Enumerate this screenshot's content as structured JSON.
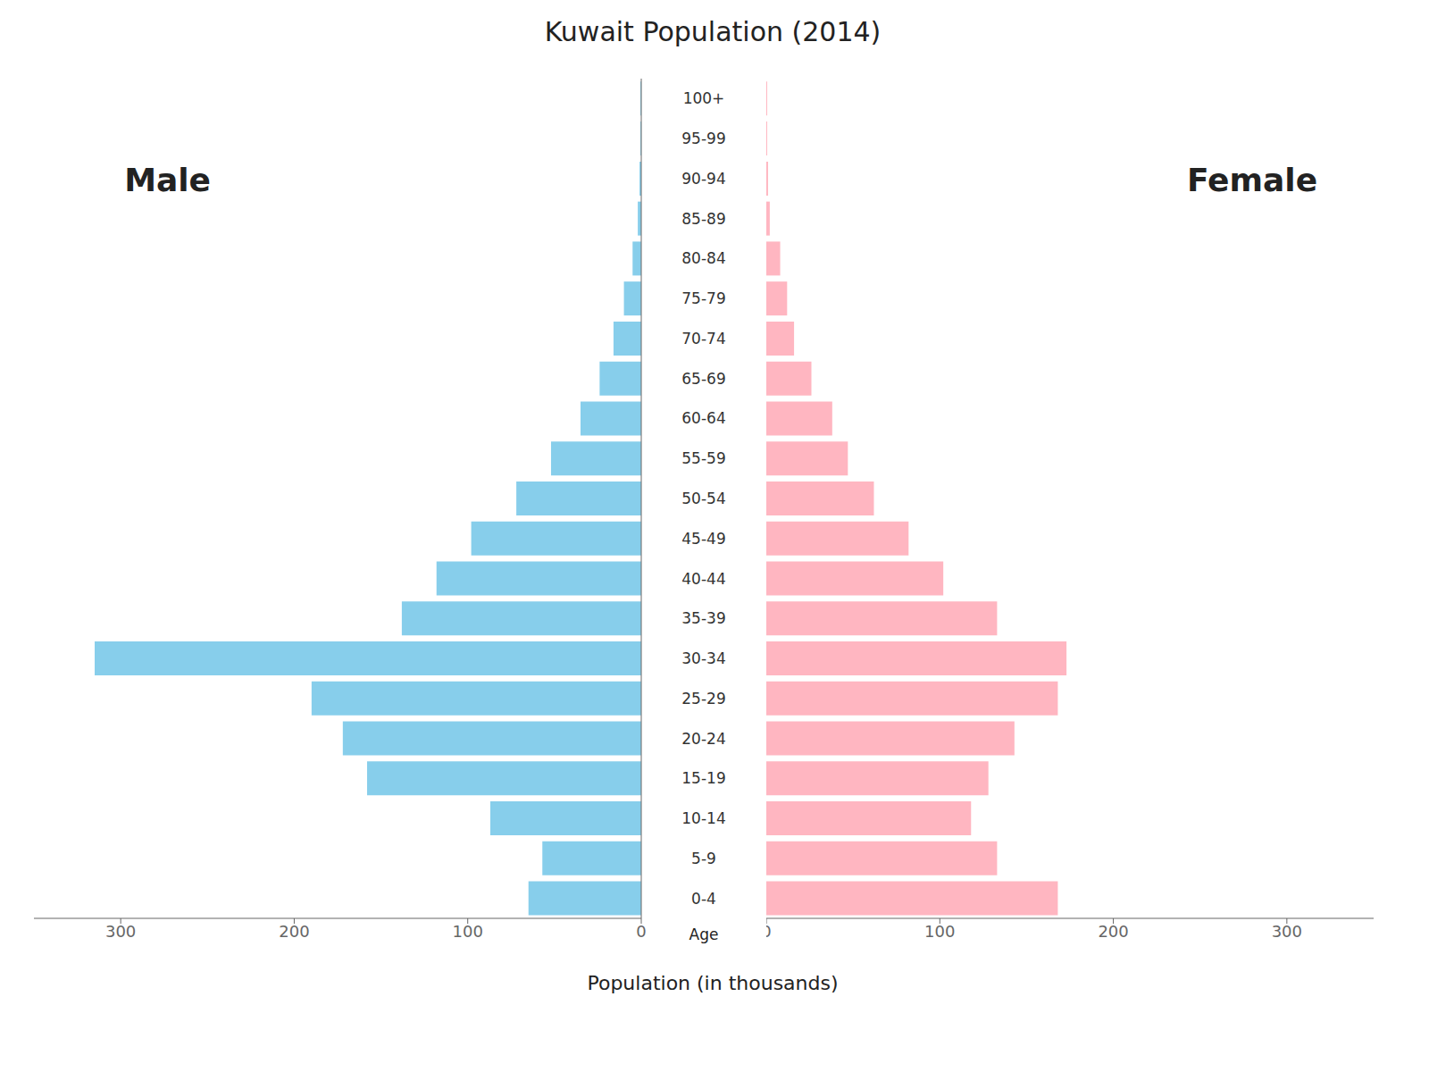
{
  "chart_data": {
    "type": "pyramid",
    "title": "Kuwait Population (2014)",
    "orientation": "horizontal",
    "xlabel": "Population (in thousands)",
    "ylabel": "Age",
    "categories": [
      "0-4",
      "5-9",
      "10-14",
      "15-19",
      "20-24",
      "25-29",
      "30-34",
      "35-39",
      "40-44",
      "45-49",
      "50-54",
      "55-59",
      "60-64",
      "65-69",
      "70-74",
      "75-79",
      "80-84",
      "85-89",
      "90-94",
      "95-99",
      "100+"
    ],
    "series": [
      {
        "name": "Male",
        "color": "#87CEEB",
        "values": [
          65,
          57,
          87,
          158,
          172,
          190,
          315,
          138,
          118,
          98,
          72,
          52,
          35,
          24,
          16,
          10,
          5,
          2,
          1.0,
          0.5,
          0.5
        ]
      },
      {
        "name": "Female",
        "color": "#FFB6C1",
        "values": [
          168,
          133,
          118,
          128,
          143,
          168,
          173,
          133,
          102,
          82,
          62,
          47,
          38,
          26,
          16,
          12,
          8,
          2,
          1.0,
          0.5,
          0.5
        ]
      }
    ],
    "xlim": [
      0,
      350
    ],
    "xticks": [
      0,
      100,
      200,
      300
    ]
  }
}
